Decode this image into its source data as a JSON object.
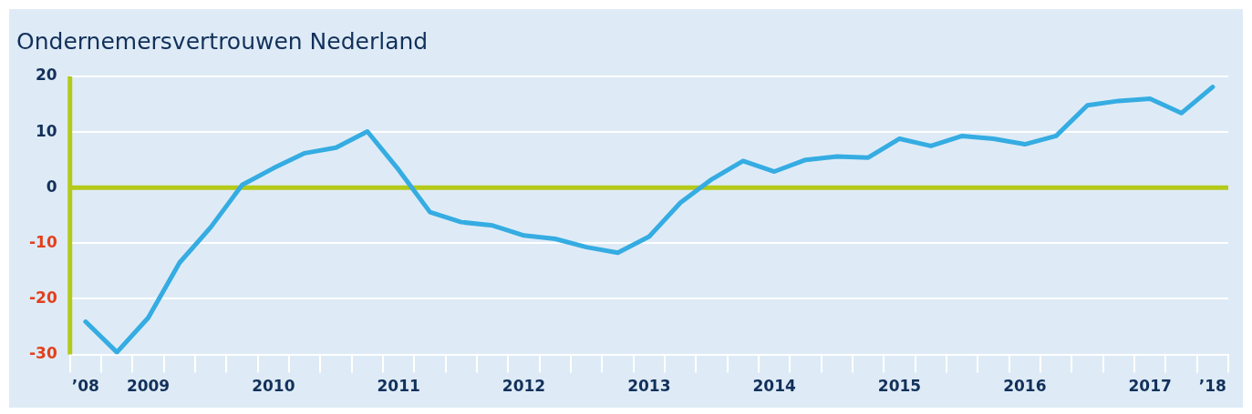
{
  "chart_data": {
    "type": "line",
    "title": "Ondernemersvertrouwen Nederland",
    "categories": [
      "’08",
      null,
      "2009",
      null,
      null,
      null,
      "2010",
      null,
      null,
      null,
      "2011",
      null,
      null,
      null,
      "2012",
      null,
      null,
      null,
      "2013",
      null,
      null,
      null,
      "2014",
      null,
      null,
      null,
      "2015",
      null,
      null,
      null,
      "2016",
      null,
      null,
      null,
      "2017",
      null,
      "’18"
    ],
    "series": [
      {
        "color": "#35ace2",
        "values": [
          -24.1,
          -29.6,
          -23.4,
          -13.5,
          -7.1,
          0.5,
          3.5,
          6.2,
          7.2,
          10.1,
          3.2,
          -4.4,
          -6.2,
          -6.8,
          -8.6,
          -9.2,
          -10.7,
          -11.7,
          -8.8,
          -2.7,
          1.5,
          4.8,
          2.9,
          5.0,
          5.6,
          5.4,
          8.8,
          7.5,
          9.3,
          8.8,
          7.8,
          9.3,
          14.8,
          15.6,
          16.0,
          13.4,
          18.1
        ]
      }
    ],
    "ylim": [
      -30,
      20
    ],
    "yticks": [
      -30,
      -20,
      -10,
      0,
      10,
      20
    ],
    "grid": "y",
    "legend": false,
    "marker": "none",
    "line_style": "solid",
    "ref_lines": [
      {
        "axis": "y",
        "value": 0,
        "color": "#b5c918"
      }
    ]
  }
}
